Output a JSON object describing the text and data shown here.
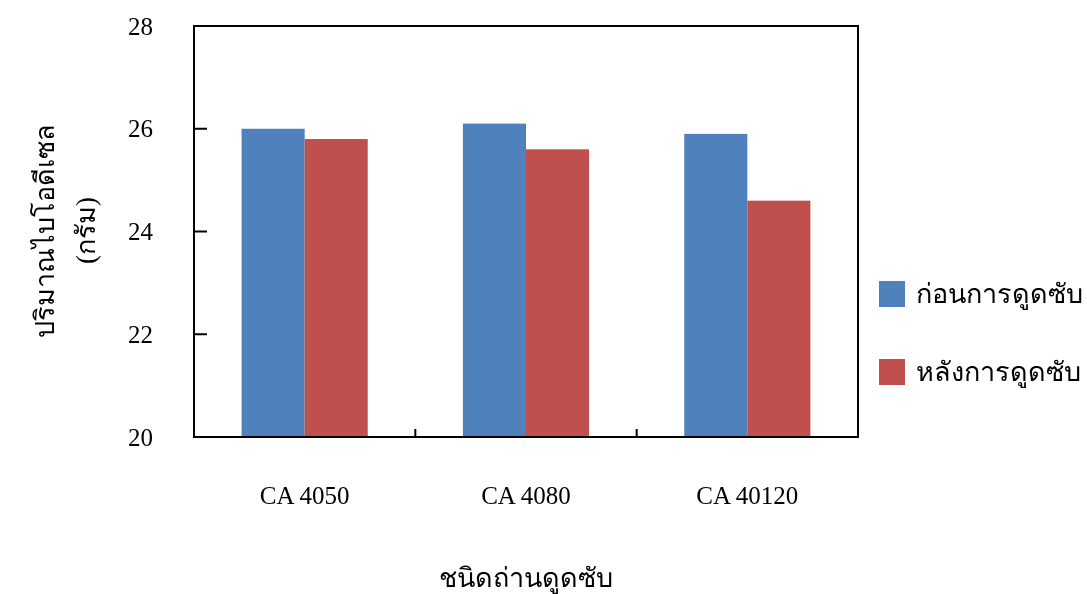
{
  "chart_data": {
    "type": "bar",
    "xlabel": "ชนิดถ่านดูดซับ",
    "ylabel": "ปริมาณไบโอดีเซล (กรัม)",
    "categories": [
      "CA 4050",
      "CA 4080",
      "CA 40120"
    ],
    "series": [
      {
        "name": "ก่อนการดูดซับ",
        "color": "#4f81bd",
        "values": [
          26.0,
          26.1,
          25.9
        ]
      },
      {
        "name": "หลังการดูดซับ",
        "color": "#c0504d",
        "values": [
          25.8,
          25.6,
          24.6
        ]
      }
    ],
    "ylim": [
      20,
      28
    ],
    "yticks": [
      20,
      22,
      24,
      26,
      28
    ],
    "legend": "right"
  }
}
